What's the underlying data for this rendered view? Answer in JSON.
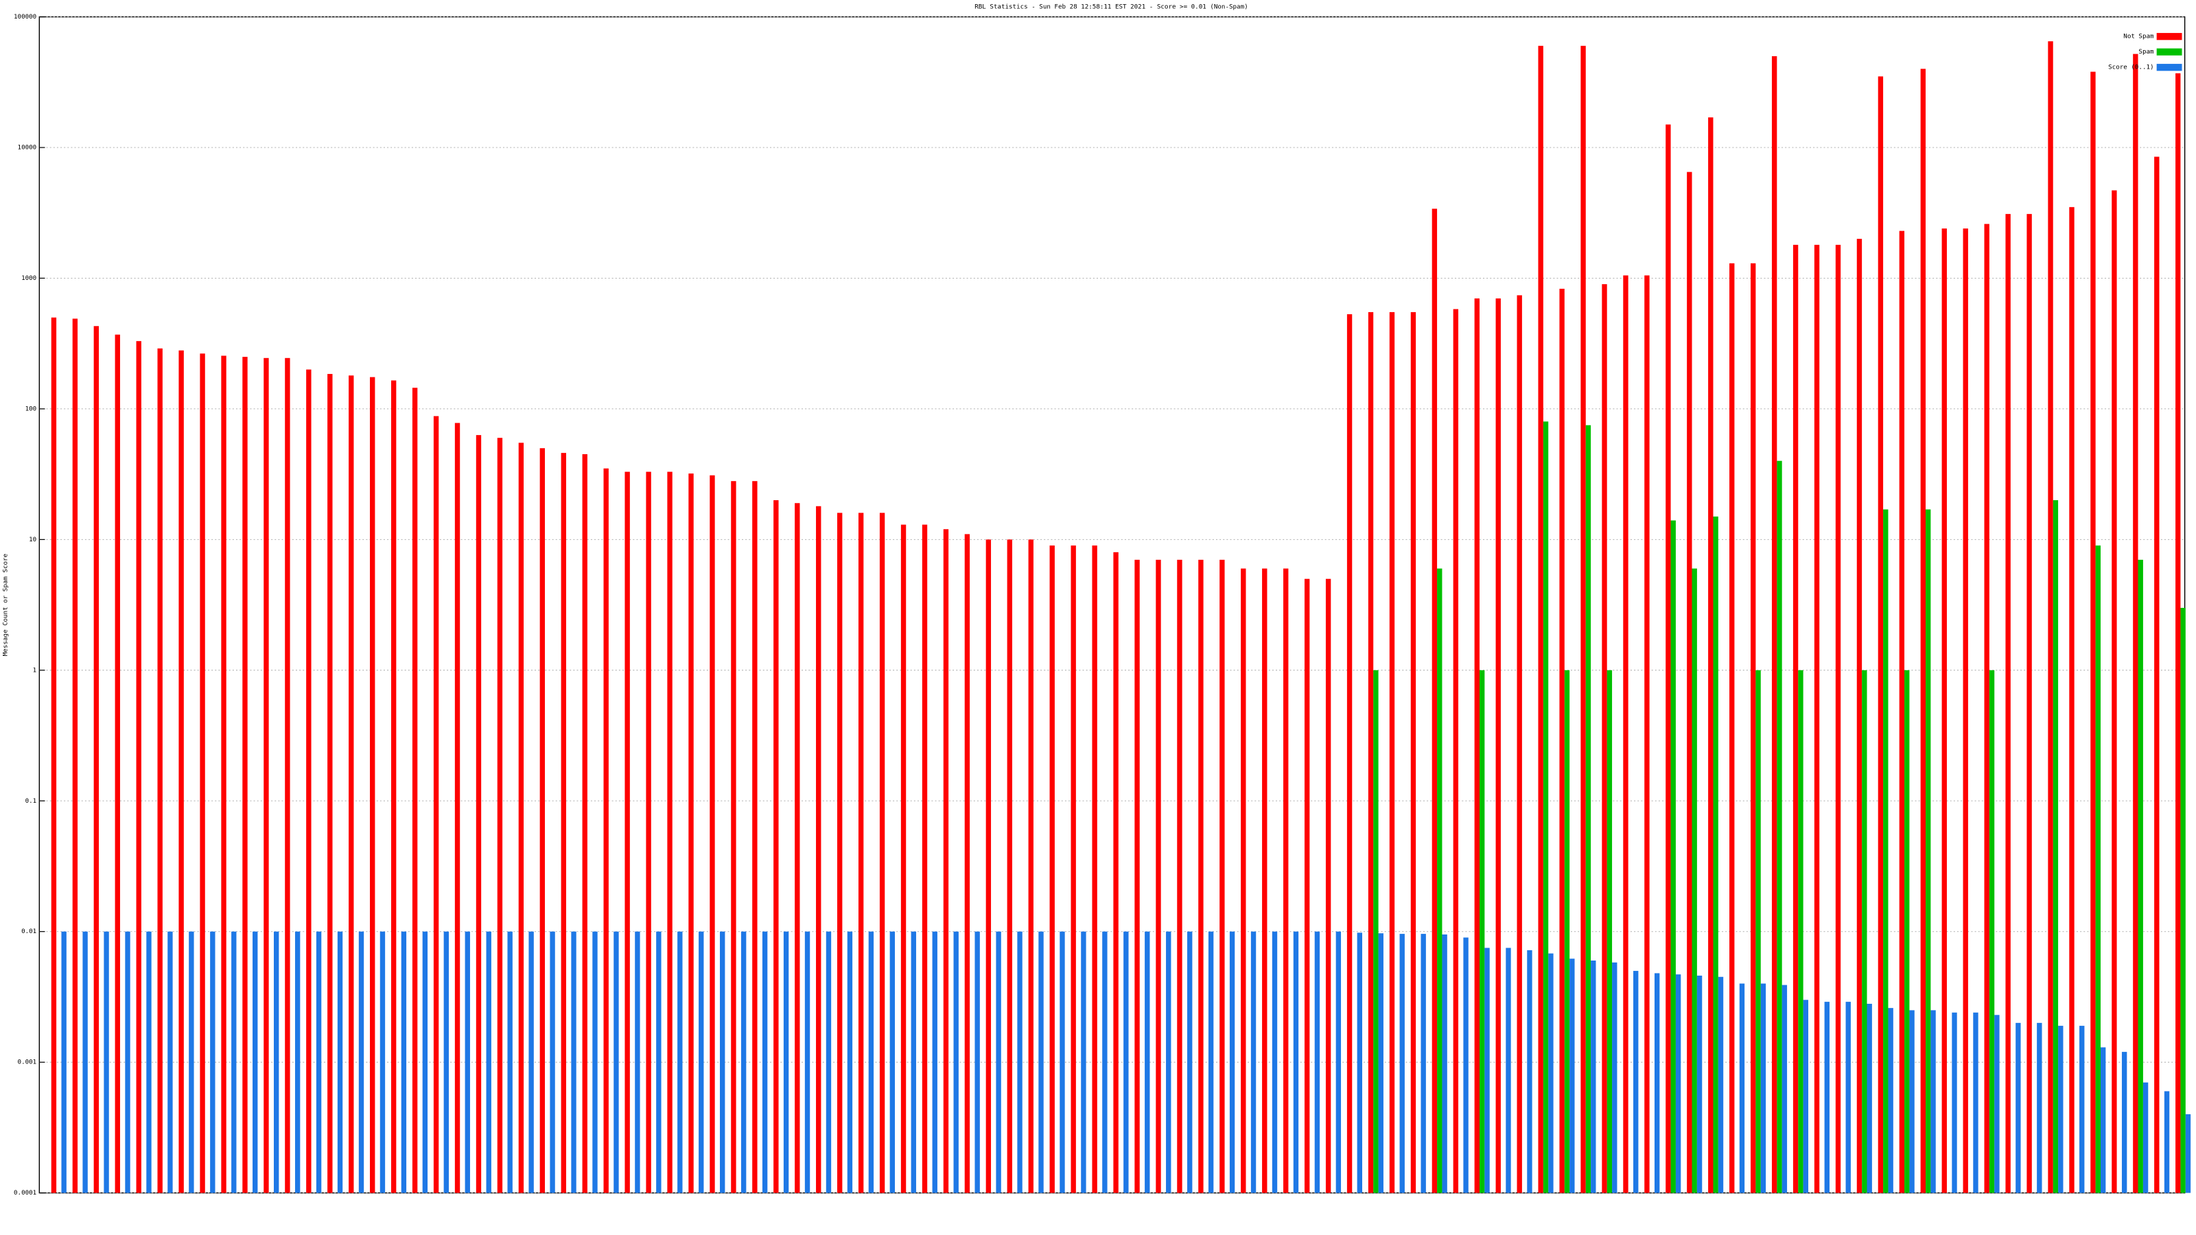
{
  "chart_data": {
    "type": "bar",
    "title": "RBL Statistics - Sun Feb 28 12:58:11 EST 2021 - Score >= 0.01 (Non-Spam)",
    "y_label": "Message Count or Spam Score",
    "log_scale": true,
    "grid": true,
    "legend": "top-right",
    "categories": [
      null,
      null,
      null,
      null,
      null,
      null,
      null,
      null,
      null,
      null,
      null,
      null,
      null,
      null,
      null,
      null,
      null,
      null,
      null,
      null,
      null,
      null,
      null,
      null,
      null,
      null,
      null,
      null,
      null,
      null,
      null,
      null,
      null,
      null,
      null,
      null,
      null,
      null,
      null,
      null,
      null,
      null,
      null,
      null,
      null,
      null,
      null,
      null,
      null,
      null,
      null,
      null,
      null,
      null,
      null,
      null,
      null,
      null,
      null,
      null,
      null,
      null,
      null,
      null,
      null,
      null,
      null,
      null,
      null,
      null,
      null,
      null,
      null,
      null,
      null,
      null,
      null,
      null,
      null,
      null,
      null,
      null,
      null,
      null,
      null,
      null,
      null,
      null,
      null,
      null,
      null,
      null,
      null,
      null,
      null,
      null,
      null,
      null,
      null,
      null,
      null
    ],
    "series": [
      {
        "name": "Not Spam",
        "color": "#ff0000",
        "values": [
          500,
          490,
          430,
          370,
          330,
          290,
          280,
          265,
          255,
          250,
          245,
          245,
          200,
          185,
          180,
          175,
          165,
          145,
          88,
          78,
          63,
          60,
          55,
          50,
          46,
          45,
          35,
          33,
          33,
          33,
          32,
          31,
          28,
          28,
          20,
          19,
          18,
          16,
          16,
          16,
          13,
          13,
          12,
          11,
          10,
          10,
          10,
          9,
          9,
          9,
          8,
          7,
          7,
          7,
          7,
          7,
          6,
          6,
          6,
          5,
          5,
          530,
          550,
          550,
          550,
          3400,
          580,
          700,
          700,
          740,
          60000,
          830,
          60000,
          900,
          1050,
          1050,
          15000,
          6500,
          17000,
          1300,
          1300,
          50000,
          1800,
          1800,
          1800,
          2000,
          35000,
          2300,
          40000,
          2400,
          2400,
          2600,
          3100,
          3100,
          65000,
          3500,
          38000,
          4700,
          52000,
          8500,
          37000
        ]
      },
      {
        "name": "Spam",
        "color": "#00c000",
        "values": [
          null,
          null,
          null,
          null,
          null,
          null,
          null,
          null,
          null,
          null,
          null,
          null,
          null,
          null,
          null,
          null,
          null,
          null,
          null,
          null,
          null,
          null,
          null,
          null,
          null,
          null,
          null,
          null,
          null,
          null,
          null,
          null,
          null,
          null,
          null,
          null,
          null,
          null,
          null,
          null,
          null,
          null,
          null,
          null,
          null,
          null,
          null,
          null,
          null,
          null,
          null,
          null,
          null,
          null,
          null,
          null,
          null,
          null,
          null,
          null,
          null,
          null,
          1,
          null,
          null,
          6,
          null,
          1,
          null,
          null,
          80,
          1,
          75,
          1,
          null,
          null,
          14,
          6,
          15,
          null,
          1,
          40,
          1,
          null,
          null,
          1,
          17,
          1,
          17,
          null,
          null,
          1,
          null,
          null,
          20,
          null,
          9,
          null,
          7,
          null,
          3
        ]
      },
      {
        "name": "Score (0..1)",
        "color": "#1e78e6",
        "values": [
          0.01,
          0.01,
          0.01,
          0.01,
          0.01,
          0.01,
          0.01,
          0.01,
          0.01,
          0.01,
          0.01,
          0.01,
          0.01,
          0.01,
          0.01,
          0.01,
          0.01,
          0.01,
          0.01,
          0.01,
          0.01,
          0.01,
          0.01,
          0.01,
          0.01,
          0.01,
          0.01,
          0.01,
          0.01,
          0.01,
          0.01,
          0.01,
          0.01,
          0.01,
          0.01,
          0.01,
          0.01,
          0.01,
          0.01,
          0.01,
          0.01,
          0.01,
          0.01,
          0.01,
          0.01,
          0.01,
          0.01,
          0.01,
          0.01,
          0.01,
          0.01,
          0.01,
          0.01,
          0.01,
          0.01,
          0.01,
          0.01,
          0.01,
          0.01,
          0.01,
          0.01,
          0.0098,
          0.0097,
          0.0096,
          0.0096,
          0.0095,
          0.009,
          0.0075,
          0.0075,
          0.0072,
          0.0068,
          0.0062,
          0.006,
          0.0058,
          0.005,
          0.0048,
          0.0047,
          0.0046,
          0.0045,
          0.004,
          0.004,
          0.0039,
          0.003,
          0.0029,
          0.0029,
          0.0028,
          0.0026,
          0.0025,
          0.0025,
          0.0024,
          0.0024,
          0.0023,
          0.002,
          0.002,
          0.0019,
          0.0019,
          0.0013,
          0.0012,
          0.0007,
          0.0006,
          0.0004
        ]
      }
    ],
    "ylim": [
      0.0001,
      100000
    ],
    "yticks": [
      0.0001,
      0.001,
      0.01,
      0.1,
      1,
      10,
      100,
      1000,
      10000,
      100000
    ]
  }
}
